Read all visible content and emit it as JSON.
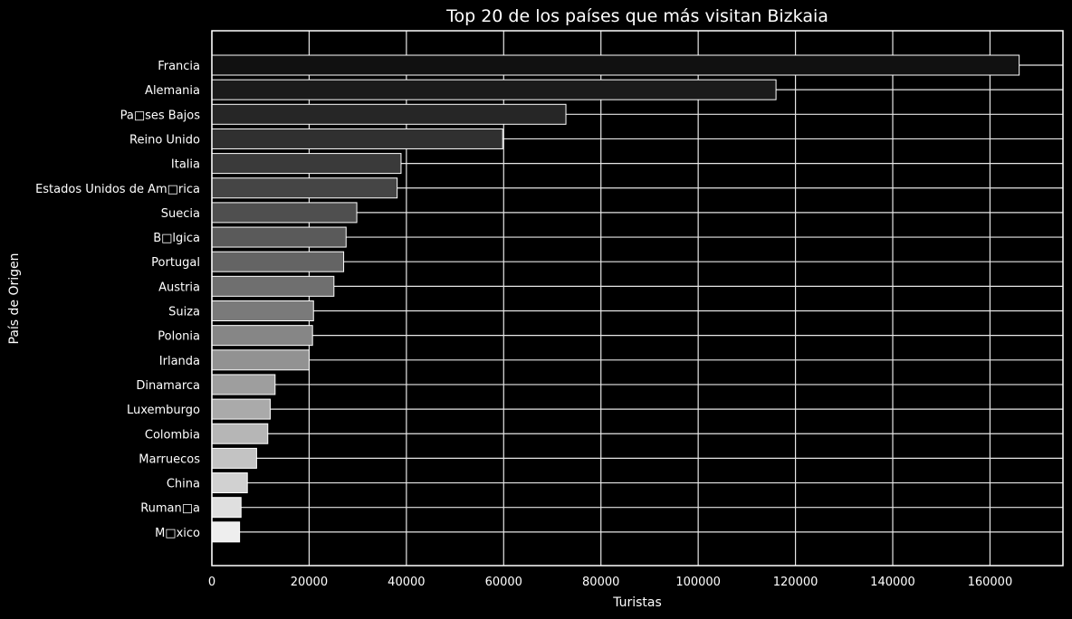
{
  "chart_data": {
    "type": "bar",
    "orientation": "horizontal",
    "title": "Top 20 de los países que más visitan Bizkaia",
    "xlabel": "Turistas",
    "ylabel": "País de Origen",
    "xlim": [
      0,
      175000
    ],
    "xticks": [
      0,
      20000,
      40000,
      60000,
      80000,
      100000,
      120000,
      140000,
      160000
    ],
    "grid": true,
    "background": "#000000",
    "categories": [
      "Francia",
      "Alemania",
      "Pa□ses Bajos",
      "Reino Unido",
      "Italia",
      "Estados Unidos de Am□rica",
      "Suecia",
      "B□lgica",
      "Portugal",
      "Austria",
      "Suiza",
      "Polonia",
      "Irlanda",
      "Dinamarca",
      "Luxemburgo",
      "Colombia",
      "Marruecos",
      "China",
      "Ruman□a",
      "M□xico"
    ],
    "values": [
      166000,
      116000,
      72800,
      59800,
      38900,
      38100,
      29800,
      27600,
      27100,
      25100,
      20900,
      20700,
      20000,
      13000,
      12000,
      11500,
      9200,
      7300,
      6000,
      5700
    ],
    "bar_colors": [
      "#111111",
      "#1b1b1b",
      "#262626",
      "#303030",
      "#3a3a3a",
      "#454545",
      "#4f4f4f",
      "#5a5a5a",
      "#646464",
      "#6f6f6f",
      "#7a7a7a",
      "#868686",
      "#929292",
      "#9e9e9e",
      "#aaaaaa",
      "#b6b6b6",
      "#c3c3c3",
      "#d1d1d1",
      "#dfdfdf",
      "#eeeeee"
    ]
  }
}
